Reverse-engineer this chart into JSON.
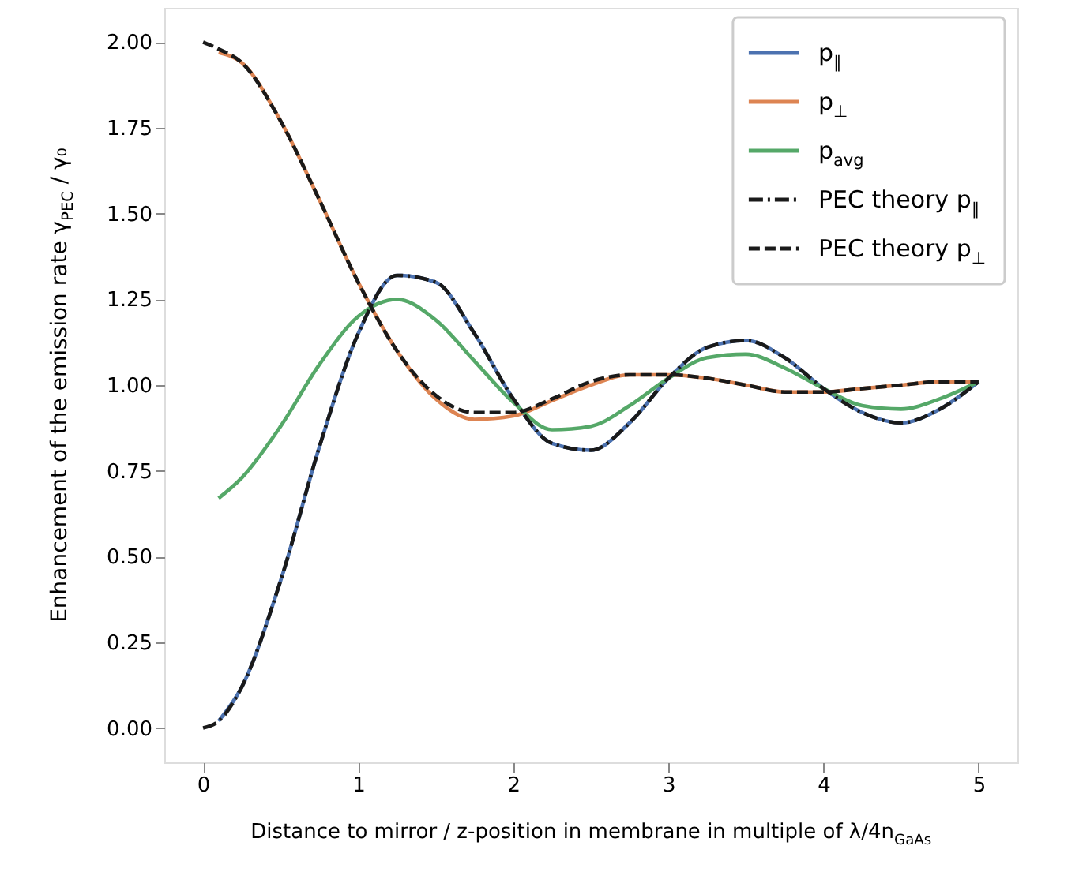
{
  "chart_data": {
    "type": "line",
    "xlabel": "Distance to mirror / z-position in membrane in multiple of λ/4n$_{GaAs}$",
    "ylabel": "Enhancement of the emission rate γ$_{PEC}$ / γ₀",
    "xlim": [
      -0.25,
      5.25
    ],
    "xticks": [
      0,
      1,
      2,
      3,
      4,
      5
    ],
    "ylim": [
      -0.1,
      2.1
    ],
    "yticks": [
      {
        "value": 0,
        "label": "0.00"
      },
      {
        "value": 0.25,
        "label": "0.25"
      },
      {
        "value": 0.5,
        "label": "0.50"
      },
      {
        "value": 0.75,
        "label": "0.75"
      },
      {
        "value": 1,
        "label": "1.00"
      },
      {
        "value": 1.25,
        "label": "1.25"
      },
      {
        "value": 1.5,
        "label": "1.50"
      },
      {
        "value": 1.75,
        "label": "1.75"
      },
      {
        "value": 2,
        "label": "2.00"
      }
    ],
    "grid": false,
    "legend": "top right",
    "marker": "none",
    "series": [
      {
        "name": "p$_{∥}$",
        "color": "#4c72b0",
        "line_style": "solid",
        "x": [
          0.1,
          0.25,
          0.5,
          0.75,
          1,
          1.25,
          1.5,
          1.75,
          2,
          2.25,
          2.5,
          2.75,
          3,
          3.25,
          3.5,
          3.75,
          4,
          4.25,
          4.5,
          4.75,
          5
        ],
        "values": [
          0.02,
          0.12,
          0.43,
          0.82,
          1.15,
          1.32,
          1.3,
          1.15,
          0.96,
          0.83,
          0.81,
          0.89,
          1.02,
          1.11,
          1.13,
          1.08,
          0.99,
          0.92,
          0.89,
          0.93,
          1.01
        ]
      },
      {
        "name": "p$_{⊥}$",
        "color": "#dd8452",
        "line_style": "solid",
        "x": [
          0.1,
          0.25,
          0.5,
          0.75,
          1,
          1.25,
          1.5,
          1.75,
          2,
          2.25,
          2.5,
          2.75,
          3,
          3.25,
          3.5,
          3.75,
          4,
          4.25,
          4.5,
          4.75,
          5
        ],
        "values": [
          1.97,
          1.94,
          1.77,
          1.54,
          1.3,
          1.1,
          0.96,
          0.9,
          0.91,
          0.955,
          1.0,
          1.03,
          1.03,
          1.02,
          1.0,
          0.98,
          0.98,
          0.99,
          1.0,
          1.01,
          1.01
        ]
      },
      {
        "name": "p$_{avg}$",
        "color": "#55a868",
        "line_style": "solid",
        "x": [
          0.1,
          0.25,
          0.5,
          0.75,
          1,
          1.25,
          1.5,
          1.75,
          2,
          2.25,
          2.5,
          2.75,
          3,
          3.25,
          3.5,
          3.75,
          4,
          4.25,
          4.5,
          4.75,
          5
        ],
        "values": [
          0.67,
          0.73,
          0.88,
          1.06,
          1.2,
          1.25,
          1.19,
          1.07,
          0.95,
          0.87,
          0.88,
          0.94,
          1.02,
          1.08,
          1.09,
          1.05,
          0.99,
          0.94,
          0.93,
          0.96,
          1.01
        ]
      },
      {
        "name": "PEC theory p$_{∥}$",
        "color": "#1a1a1a",
        "line_style": "dashdot",
        "x": [
          0,
          0.1,
          0.25,
          0.5,
          0.75,
          1,
          1.25,
          1.5,
          1.75,
          2,
          2.25,
          2.5,
          2.75,
          3,
          3.25,
          3.5,
          3.75,
          4,
          4.25,
          4.5,
          4.75,
          5
        ],
        "values": [
          0.0,
          0.02,
          0.12,
          0.43,
          0.82,
          1.15,
          1.32,
          1.3,
          1.15,
          0.96,
          0.83,
          0.81,
          0.89,
          1.02,
          1.11,
          1.13,
          1.08,
          0.99,
          0.92,
          0.89,
          0.93,
          1.01
        ]
      },
      {
        "name": "PEC theory p$_{⊥}$",
        "color": "#1a1a1a",
        "line_style": "dashed",
        "x": [
          0,
          0.1,
          0.25,
          0.5,
          0.75,
          1,
          1.25,
          1.5,
          1.75,
          2,
          2.25,
          2.5,
          2.75,
          3,
          3.25,
          3.5,
          3.75,
          4,
          4.25,
          4.5,
          4.75,
          5
        ],
        "values": [
          2.0,
          1.98,
          1.94,
          1.77,
          1.54,
          1.3,
          1.1,
          0.97,
          0.92,
          0.92,
          0.96,
          1.01,
          1.03,
          1.03,
          1.02,
          1.0,
          0.98,
          0.98,
          0.99,
          1.0,
          1.01,
          1.01
        ]
      }
    ]
  }
}
